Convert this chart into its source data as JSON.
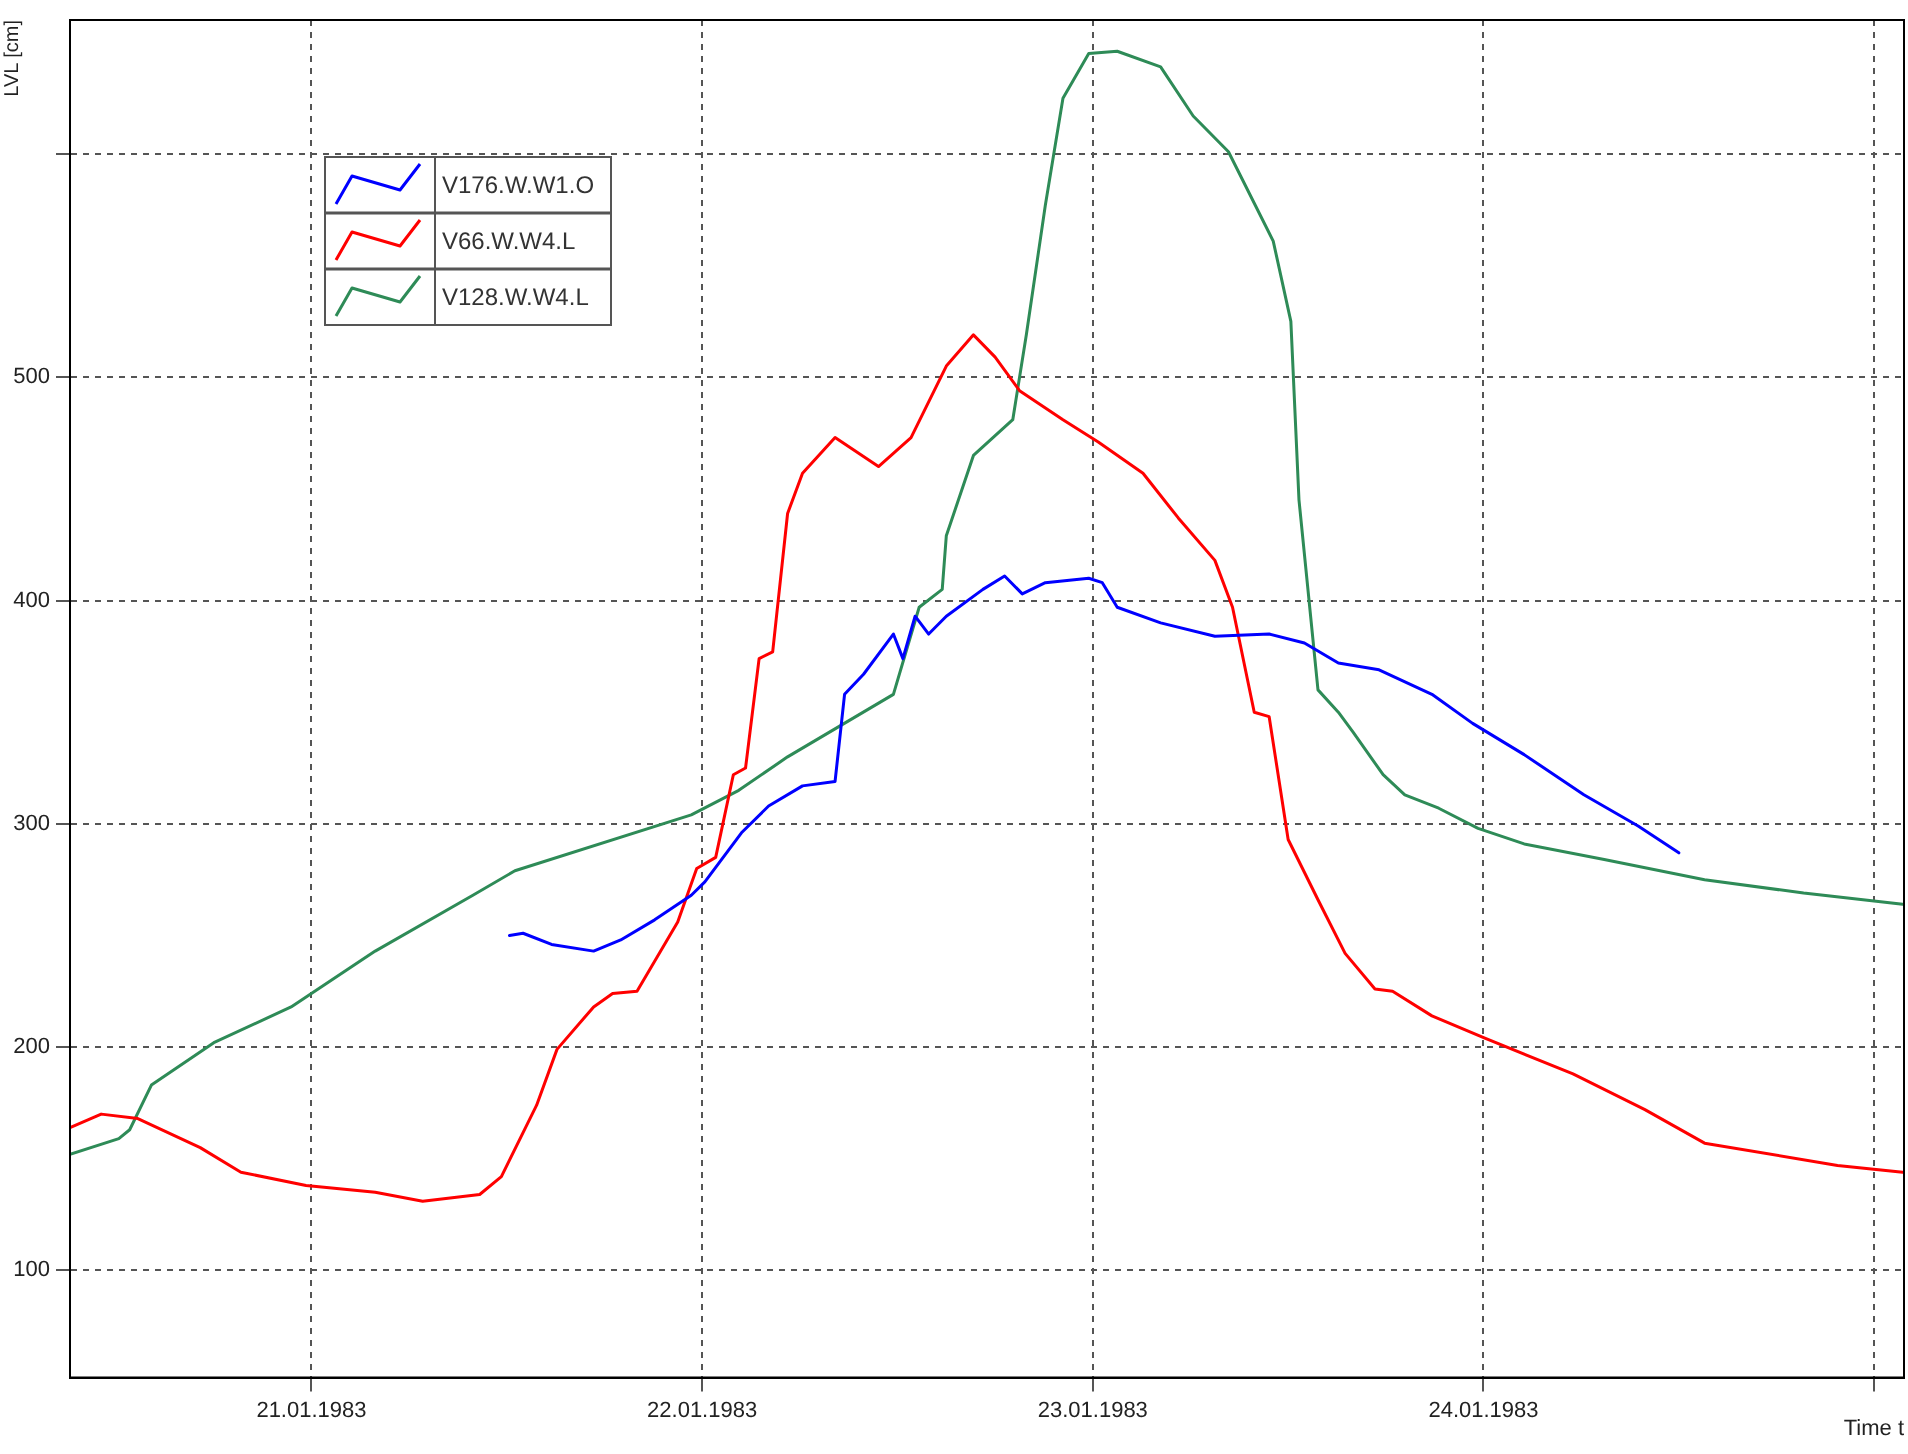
{
  "chart_data": {
    "type": "line",
    "ylabel": "LVL [cm]",
    "xlabel": "Time t",
    "xlim": [
      "1983-01-20T09:10",
      "1983-01-25T01:50"
    ],
    "xticks": [
      {
        "value": "1983-01-21",
        "label": "21.01.1983"
      },
      {
        "value": "1983-01-22",
        "label": "22.01.1983"
      },
      {
        "value": "1983-01-23",
        "label": "23.01.1983"
      },
      {
        "value": "1983-01-24",
        "label": "24.01.1983"
      },
      {
        "value": "1983-01-25",
        "label": null
      }
    ],
    "ylim": [
      52,
      660
    ],
    "yticks": [
      100,
      200,
      300,
      400,
      500,
      {
        "value": 600,
        "label": null
      }
    ],
    "grid": true,
    "legend": "top left",
    "marker": "none",
    "line_style": "solid",
    "series": [
      {
        "name": "V176.W.W1.O",
        "color": "#0000ff",
        "x": [
          "1983-01-21T12:10",
          "1983-01-21T13:00",
          "1983-01-21T14:45",
          "1983-01-21T17:20",
          "1983-01-21T19:00",
          "1983-01-21T21:05",
          "1983-01-21T23:20",
          "1983-01-22T00:10",
          "1983-01-22T02:25",
          "1983-01-22T04:05",
          "1983-01-22T06:10",
          "1983-01-22T08:10",
          "1983-01-22T08:45",
          "1983-01-22T09:55",
          "1983-01-22T11:45",
          "1983-01-22T12:20",
          "1983-01-22T13:05",
          "1983-01-22T13:55",
          "1983-01-22T15:00",
          "1983-01-22T17:15",
          "1983-01-22T18:35",
          "1983-01-22T19:40",
          "1983-01-22T21:05",
          "1983-01-22T23:45",
          "1983-01-23T00:35",
          "1983-01-23T01:30",
          "1983-01-23T04:10",
          "1983-01-23T07:30",
          "1983-01-23T10:50",
          "1983-01-23T13:00",
          "1983-01-23T15:05",
          "1983-01-23T17:35",
          "1983-01-23T20:50",
          "1983-01-23T23:20",
          "1983-01-24T02:30",
          "1983-01-24T06:10",
          "1983-01-24T09:30",
          "1983-01-24T12:00"
        ],
        "values": [
          250,
          251,
          246,
          243,
          248,
          257,
          268,
          274,
          296,
          308,
          317,
          319,
          358,
          367,
          385,
          374,
          393,
          385,
          393,
          405,
          411,
          403,
          408,
          410,
          408,
          397,
          390,
          384,
          385,
          381,
          372,
          369,
          358,
          345,
          331,
          313,
          299,
          287
        ]
      },
      {
        "name": "V66.W.W4.L",
        "color": "#ff0000",
        "x": [
          "1983-01-20T09:10",
          "1983-01-20T11:05",
          "1983-01-20T13:20",
          "1983-01-20T17:10",
          "1983-01-20T19:40",
          "1983-01-20T23:40",
          "1983-01-21T03:55",
          "1983-01-21T06:50",
          "1983-01-21T10:20",
          "1983-01-21T11:40",
          "1983-01-21T13:50",
          "1983-01-21T15:05",
          "1983-01-21T17:20",
          "1983-01-21T18:30",
          "1983-01-21T20:00",
          "1983-01-21T22:30",
          "1983-01-21T23:40",
          "1983-01-22T00:50",
          "1983-01-22T01:55",
          "1983-01-22T02:40",
          "1983-01-22T03:30",
          "1983-01-22T04:20",
          "1983-01-22T05:15",
          "1983-01-22T06:10",
          "1983-01-22T08:10",
          "1983-01-22T10:50",
          "1983-01-22T12:50",
          "1983-01-22T15:00",
          "1983-01-22T16:40",
          "1983-01-22T18:00",
          "1983-01-22T19:30",
          "1983-01-22T22:10",
          "1983-01-23T00:20",
          "1983-01-23T03:05",
          "1983-01-23T05:15",
          "1983-01-23T07:30",
          "1983-01-23T08:35",
          "1983-01-23T09:55",
          "1983-01-23T10:50",
          "1983-01-23T12:00",
          "1983-01-23T13:50",
          "1983-01-23T15:30",
          "1983-01-23T17:20",
          "1983-01-23T18:25",
          "1983-01-23T20:50",
          "1983-01-24T00:05",
          "1983-01-24T05:30",
          "1983-01-24T09:55",
          "1983-01-24T13:35",
          "1983-01-24T21:45",
          "1983-01-25T01:45"
        ],
        "values": [
          164,
          170,
          168,
          155,
          144,
          138,
          135,
          131,
          134,
          142,
          174,
          199,
          218,
          224,
          225,
          256,
          280,
          285,
          322,
          325,
          374,
          377,
          439,
          457,
          473,
          460,
          473,
          505,
          519,
          509,
          494,
          481,
          471,
          457,
          437,
          418,
          397,
          350,
          348,
          293,
          266,
          242,
          226,
          225,
          214,
          204,
          188,
          172,
          157,
          147,
          144
        ]
      },
      {
        "name": "V128.W.W4.L",
        "color": "#2e8b57",
        "x": [
          "1983-01-20T09:10",
          "1983-01-20T12:10",
          "1983-01-20T12:50",
          "1983-01-20T14:10",
          "1983-01-20T18:00",
          "1983-01-20T22:45",
          "1983-01-21T03:55",
          "1983-01-21T09:55",
          "1983-01-21T12:30",
          "1983-01-21T23:20",
          "1983-01-22T02:15",
          "1983-01-22T05:15",
          "1983-01-22T11:45",
          "1983-01-22T13:20",
          "1983-01-22T14:45",
          "1983-01-22T15:00",
          "1983-01-22T16:40",
          "1983-01-22T19:05",
          "1983-01-22T19:55",
          "1983-01-22T21:05",
          "1983-01-22T22:10",
          "1983-01-22T23:45",
          "1983-01-23T01:30",
          "1983-01-23T04:10",
          "1983-01-23T06:10",
          "1983-01-23T08:20",
          "1983-01-23T11:05",
          "1983-01-23T12:10",
          "1983-01-23T12:40",
          "1983-01-23T13:50",
          "1983-01-23T15:05",
          "1983-01-23T16:00",
          "1983-01-23T17:50",
          "1983-01-23T19:10",
          "1983-01-23T21:15",
          "1983-01-23T23:40",
          "1983-01-24T02:30",
          "1983-01-24T07:25",
          "1983-01-24T13:35",
          "1983-01-24T19:40",
          "1983-01-25T01:45"
        ],
        "values": [
          152,
          159,
          163,
          183,
          202,
          218,
          243,
          268,
          279,
          304,
          315,
          330,
          358,
          397,
          405,
          429,
          465,
          481,
          519,
          577,
          625,
          645,
          646,
          639,
          617,
          601,
          561,
          525,
          445,
          360,
          350,
          341,
          322,
          313,
          307,
          298,
          291,
          284,
          275,
          269,
          264
        ]
      }
    ]
  }
}
